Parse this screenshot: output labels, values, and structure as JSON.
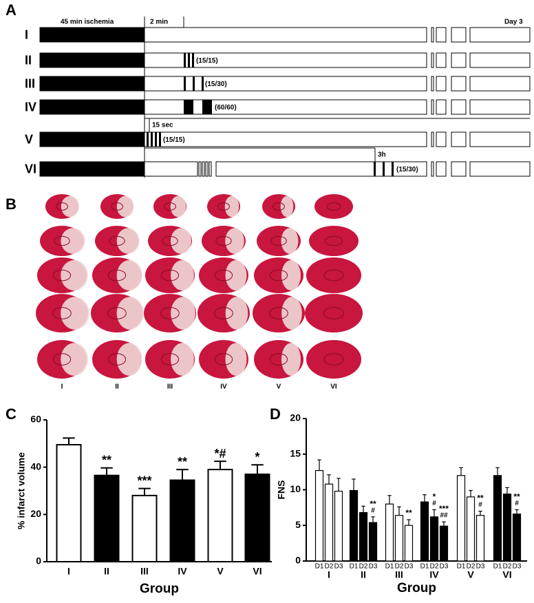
{
  "figure": {
    "panel_labels": [
      "A",
      "B",
      "C",
      "D"
    ]
  },
  "protocol": {
    "header": {
      "ischemia": "45 min ischemia",
      "reperfusion": "2 min",
      "end": "Day 3"
    },
    "rows": [
      {
        "label": "I"
      },
      {
        "label": "II",
        "note": "(15/15)"
      },
      {
        "label": "III",
        "note": "(15/30)"
      },
      {
        "label": "IV",
        "note": "(60/60)"
      },
      {
        "label": "V",
        "note": "(15/15)",
        "timing": "15 sec"
      },
      {
        "label": "VI",
        "note": "(15/30)",
        "timing": "3h"
      }
    ]
  },
  "slices": {
    "labels": [
      "I",
      "II",
      "III",
      "IV",
      "V",
      "VI"
    ]
  },
  "chart_data": [
    {
      "type": "bar",
      "ylabel": "% infarct volume",
      "xlabel": "Group",
      "categories": [
        "I",
        "II",
        "III",
        "IV",
        "V",
        "VI"
      ],
      "values": [
        49.5,
        36.5,
        28,
        34.5,
        39,
        37
      ],
      "errors": [
        2.8,
        3.2,
        3,
        4.5,
        3.5,
        4
      ],
      "annotations": [
        null,
        "**",
        "***",
        "**",
        "*#",
        "*"
      ],
      "colors": [
        "#ffffff",
        "#000000",
        "#ffffff",
        "#000000",
        "#ffffff",
        "#000000"
      ],
      "ylim": [
        0,
        60
      ],
      "yticks": [
        0,
        20,
        40,
        60
      ]
    },
    {
      "type": "grouped_bar",
      "ylabel": "FNS",
      "xlabel": "Group",
      "categories": [
        "I",
        "II",
        "III",
        "IV",
        "V",
        "VI"
      ],
      "colors": [
        "#ffffff",
        "#000000",
        "#ffffff",
        "#000000",
        "#ffffff",
        "#000000"
      ],
      "series": [
        {
          "name": "D1",
          "values": [
            12.7,
            9.9,
            8.0,
            8.3,
            12.0,
            12.0
          ],
          "errors": [
            1.5,
            1.6,
            1.2,
            1.0,
            1.1,
            1.1
          ],
          "annotations": [
            null,
            null,
            null,
            null,
            null,
            null
          ]
        },
        {
          "name": "D2",
          "values": [
            10.8,
            6.8,
            6.4,
            6.2,
            9.0,
            9.4
          ],
          "errors": [
            1.3,
            0.9,
            1.2,
            1.0,
            0.9,
            0.9
          ],
          "annotations": [
            null,
            null,
            null,
            [
              "*",
              "#"
            ],
            null,
            null
          ]
        },
        {
          "name": "D3",
          "values": [
            9.8,
            5.4,
            5.0,
            4.9,
            6.4,
            6.6
          ],
          "errors": [
            1.8,
            0.8,
            0.8,
            0.6,
            0.6,
            0.6
          ],
          "annotations": [
            null,
            [
              "**",
              "#"
            ],
            [
              "**"
            ],
            [
              "***",
              "##"
            ],
            [
              "**",
              "#"
            ],
            [
              "**",
              "#"
            ]
          ]
        }
      ],
      "ylim": [
        0,
        20
      ],
      "yticks": [
        0,
        5,
        10,
        15,
        20
      ]
    }
  ]
}
